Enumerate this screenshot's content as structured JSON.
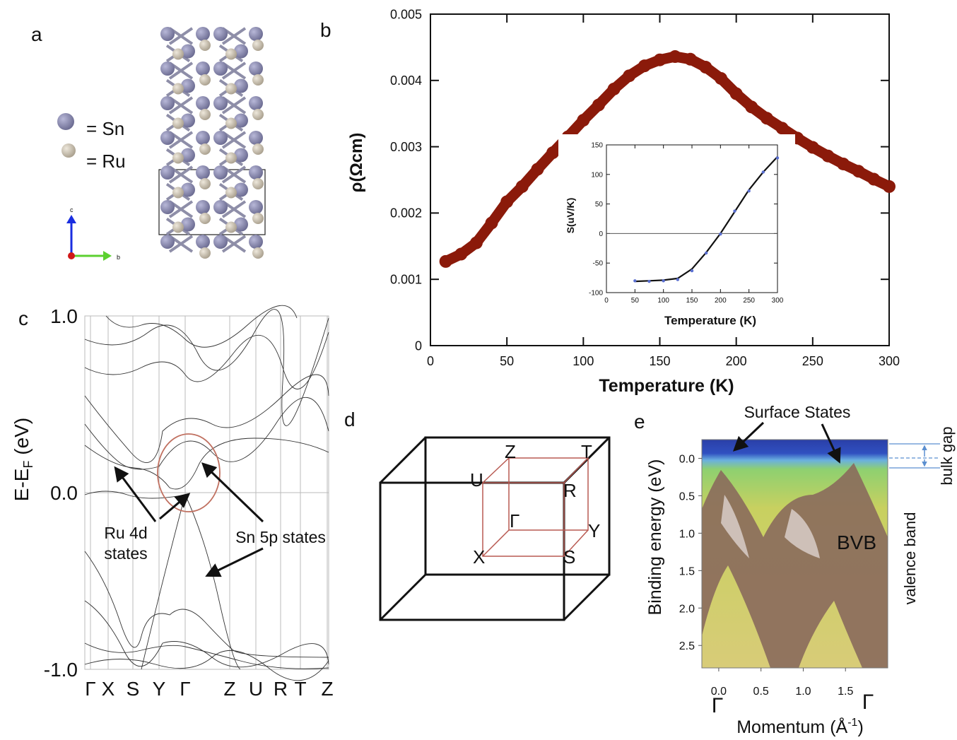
{
  "panel_a": {
    "letter": "a",
    "legend": [
      "= Sn",
      "= Ru"
    ],
    "axes": [
      "c",
      "b"
    ]
  },
  "panel_d": {
    "letter": "d",
    "points": [
      "Z",
      "T",
      "U",
      "R",
      "Γ",
      "Y",
      "X",
      "S"
    ]
  },
  "chart_data": [
    {
      "type": "scatter",
      "letter": "b",
      "xlabel": "Temperature (K)",
      "ylabel": "ρ(Ωcm)",
      "color": "#8b1a0a",
      "x": [
        10,
        20,
        30,
        40,
        50,
        60,
        70,
        80,
        90,
        100,
        110,
        120,
        130,
        140,
        150,
        160,
        170,
        180,
        190,
        200,
        210,
        220,
        230,
        240,
        250,
        260,
        270,
        280,
        290,
        300
      ],
      "values": [
        0.00127,
        0.00138,
        0.00155,
        0.00185,
        0.00217,
        0.0024,
        0.00266,
        0.00291,
        0.00315,
        0.0034,
        0.00363,
        0.00387,
        0.00407,
        0.00422,
        0.00431,
        0.00436,
        0.00432,
        0.0042,
        0.00403,
        0.0038,
        0.0036,
        0.00343,
        0.00328,
        0.00313,
        0.00299,
        0.00286,
        0.00274,
        0.00263,
        0.00251,
        0.0024
      ],
      "xlim": [
        0,
        300
      ],
      "xticks": [
        0,
        50,
        100,
        150,
        200,
        250,
        300
      ],
      "ylim": [
        0,
        0.005
      ],
      "yticks": [
        0,
        0.001,
        0.002,
        0.003,
        0.004,
        0.005
      ]
    },
    {
      "type": "scatter",
      "xlabel": "Temperature (K)",
      "ylabel": "S(uV/K)",
      "color": "#5a6fd0",
      "fit_color": "#111111",
      "x": [
        50,
        75,
        100,
        125,
        150,
        175,
        200,
        225,
        250,
        275,
        300
      ],
      "values": [
        -80,
        -81,
        -80,
        -78,
        -63,
        -33,
        -1,
        38,
        72,
        104,
        128
      ],
      "fit_values": [
        -81,
        -80,
        -79,
        -76,
        -60,
        -32,
        0,
        37,
        74,
        104,
        130
      ],
      "xlim": [
        0,
        300
      ],
      "xticks": [
        0,
        50,
        100,
        150,
        200,
        250,
        300
      ],
      "ylim": [
        -100,
        150
      ],
      "yticks": [
        -100,
        -50,
        0,
        50,
        100,
        150
      ]
    },
    {
      "type": "band",
      "letter": "c",
      "ylabel_parts": [
        "E-E",
        "F",
        " (eV)"
      ],
      "categories": [
        "Γ",
        "X",
        "S",
        "Y",
        "Γ",
        "Z",
        "U",
        "R",
        "T",
        "Z"
      ],
      "ylim": [
        -1,
        1
      ],
      "yticks": [
        {
          "value": 1,
          "label": "1.0"
        },
        {
          "value": 0,
          "label": "0.0"
        },
        {
          "value": -1,
          "label": "-1.0"
        }
      ],
      "annotations": [
        "Ru 4d",
        "states",
        "Sn 5p states"
      ]
    },
    {
      "type": "image",
      "letter": "e",
      "ylabel": "Binding energy (eV)",
      "xlabel_parts": [
        "Momentum (Å",
        "-1",
        ")"
      ],
      "xlim": [
        -0.2,
        2.0
      ],
      "xticks": [
        {
          "value": 0,
          "label": "0.0"
        },
        0.5,
        {
          "value": 1,
          "label": "1.0"
        },
        1.5
      ],
      "ylim": [
        -0.25,
        2.8
      ],
      "yticks": [
        {
          "value": 0,
          "label": "0.0"
        },
        0.5,
        {
          "value": 1,
          "label": "1.0"
        },
        1.5,
        {
          "value": 2,
          "label": "2.0"
        },
        2.5
      ],
      "point_labels": [
        "Γ",
        "Γ"
      ],
      "annotations": [
        "Surface States",
        "BVB",
        "bulk gap",
        "valence band"
      ]
    }
  ]
}
